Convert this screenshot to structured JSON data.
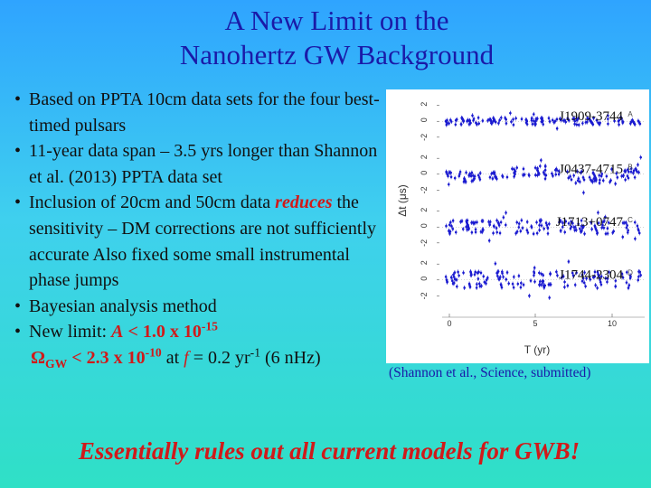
{
  "slide": {
    "title_line1": "A New Limit on the",
    "title_line2": "Nanohertz GW Background",
    "bullet_marker": "•",
    "bullets": [
      "Based on PPTA 10cm data sets for the four best-timed pulsars",
      "11-year data span – 3.5 yrs longer than Shannon et al. (2013) PPTA data set",
      "Inclusion of 20cm and 50cm data",
      "Bayesian analysis method"
    ],
    "bullet3_emph": "reduces",
    "bullet3_rest": " the sensitivity – DM corrections are not sufficiently accurate Also fixed some small instrumental phase jumps",
    "limit": {
      "lead": "New limit: ",
      "A_symbol": "A",
      "A_value": " < 1.0 x 10",
      "A_exp": "-15",
      "omega_symbol": "Ω",
      "omega_sub": "GW",
      "omega_value": " < 2.3 x 10",
      "omega_exp": "-10",
      "at_text": " at ",
      "f_symbol": "f",
      "freq_text": " = 0.2 yr",
      "freq_exp": "-1",
      "nhz_text": " (6 nHz)"
    },
    "citation": "(Shannon et al., Science, submitted)",
    "conclusion": "Essentially rules out all current models for GWB!"
  },
  "figure": {
    "x_axis_label": "T (yr)",
    "y_axis_label": "Δt (μs)",
    "x_ticks": [
      "0",
      "5",
      "10"
    ],
    "y_ticks": [
      "2",
      "0",
      "-2"
    ],
    "panels": [
      {
        "pulsar": "J1909-3744",
        "letter": "A"
      },
      {
        "pulsar": "J0437-4715",
        "letter": "B"
      },
      {
        "pulsar": "J1713+0747",
        "letter": "C"
      },
      {
        "pulsar": "J1744-2304",
        "letter": "D"
      }
    ],
    "residual_color": "#1a1ad0"
  }
}
